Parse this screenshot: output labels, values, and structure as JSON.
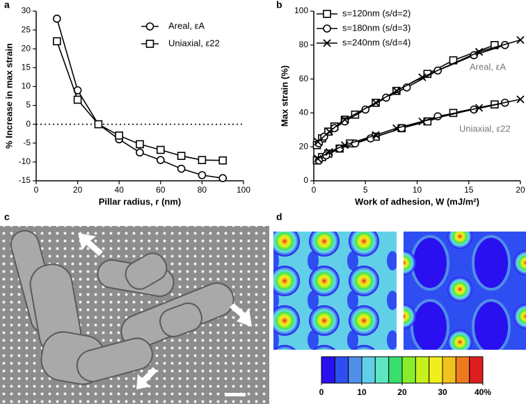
{
  "chart_data": [
    {
      "type": "line",
      "label": "a",
      "x_label": "Pillar radius, r (nm)",
      "y_label": "% Increase in max strain",
      "x": [
        10,
        20,
        30,
        40,
        50,
        60,
        70,
        80,
        90
      ],
      "series": [
        {
          "name": "Areal, εA",
          "marker": "circle",
          "color": "#000000",
          "values": [
            28,
            9,
            0,
            -4,
            -7.5,
            -9.5,
            -11.8,
            -13.5,
            -14.3
          ]
        },
        {
          "name": "Uniaxial, ε22",
          "marker": "square",
          "color": "#000000",
          "values": [
            22,
            6.5,
            0,
            -3,
            -5.3,
            -6.8,
            -8.4,
            -9.5,
            -9.6
          ]
        }
      ],
      "hlines": [
        0
      ],
      "xlim": [
        0,
        100
      ],
      "xticks": [
        0,
        20,
        40,
        60,
        80,
        100
      ],
      "ylim": [
        -15,
        30
      ],
      "yticks": [
        -15,
        -10,
        -5,
        0,
        5,
        10,
        15,
        20,
        25,
        30
      ]
    },
    {
      "type": "line",
      "label": "b",
      "x_label": "Work of adhesion,  W (mJ/m²)",
      "y_label": "Max strain (%)",
      "series": [
        {
          "name": "s=120nm (s/d=2)",
          "marker": "square",
          "color": "#000000",
          "x": [
            0.3,
            0.8,
            1.4,
            2,
            3,
            4,
            6,
            8,
            11,
            13.5,
            17.5,
            null,
            0.3,
            0.8,
            1.4,
            2.5,
            3.5,
            6,
            8.5,
            11,
            13.5,
            17.5
          ],
          "values": [
            21,
            25,
            29,
            32,
            36,
            39,
            46,
            53,
            63,
            71,
            80,
            null,
            12,
            14,
            16,
            19,
            22,
            26,
            31,
            35,
            40,
            45
          ]
        },
        {
          "name": "s=180nm (s/d=3)",
          "marker": "circle",
          "color": "#000000",
          "x": [
            0.5,
            1,
            2,
            3,
            5,
            7,
            9,
            12,
            15.5,
            18.5,
            null,
            0.5,
            1.2,
            2.5,
            4,
            5.5,
            8.5,
            12,
            15.5,
            18.5
          ],
          "values": [
            22,
            26,
            31,
            35,
            42,
            49,
            55,
            65,
            74,
            80,
            null,
            12,
            15,
            19,
            22,
            25,
            31,
            38,
            42,
            46
          ]
        },
        {
          "name": "s=240nm (s/d=4)",
          "marker": "cross",
          "color": "#000000",
          "x": [
            0.4,
            1.5,
            3,
            6,
            8,
            10.5,
            16,
            20,
            null,
            0.4,
            1.5,
            3,
            6,
            8,
            10.5,
            16,
            20
          ],
          "values": [
            23,
            29,
            36,
            46,
            53,
            61,
            76,
            83,
            null,
            13,
            17,
            21,
            27,
            31,
            35,
            43,
            48
          ]
        }
      ],
      "annotations": [
        "Areal, εA",
        "Uniaxial, ε22"
      ],
      "xlim": [
        0,
        20
      ],
      "xticks": [
        0,
        5,
        10,
        15,
        20
      ],
      "ylim": [
        0,
        100
      ],
      "yticks": [
        0,
        20,
        40,
        60,
        80,
        100
      ]
    },
    {
      "type": "image",
      "label": "c"
    },
    {
      "type": "heatmap",
      "label": "d",
      "colors": [
        "#2a10f0",
        "#2f4ef2",
        "#4f8fe8",
        "#62cfe8",
        "#5ee6c0",
        "#3ade6e",
        "#86ee2a",
        "#c6f020",
        "#f2ee1e",
        "#f2c21e",
        "#ee7a1e",
        "#dc1e1e"
      ],
      "clim": [
        0,
        40
      ],
      "cticks": [
        0,
        10,
        20,
        30,
        {
          "value": 40,
          "label": "40%"
        }
      ]
    }
  ]
}
